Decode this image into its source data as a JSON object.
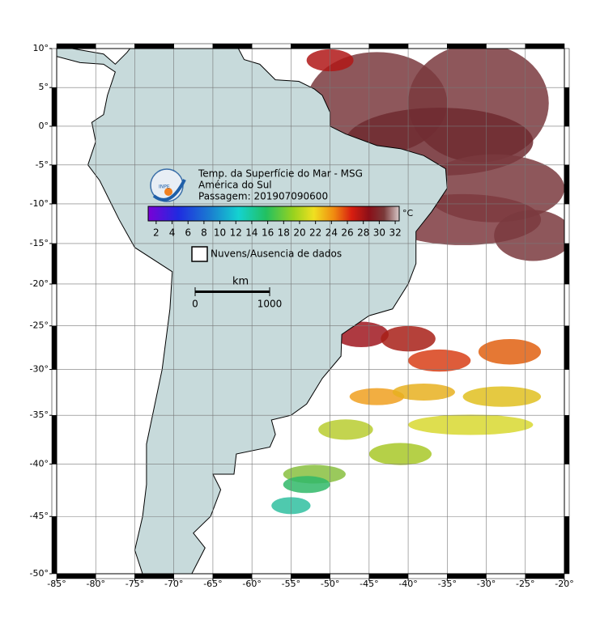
{
  "map": {
    "lonlim": [
      -85,
      -20
    ],
    "latlim": [
      -50,
      10
    ],
    "lonticks": [
      {
        "value": -85,
        "label": "-85°"
      },
      {
        "value": -80,
        "label": "-80°"
      },
      {
        "value": -75,
        "label": "-75°"
      },
      {
        "value": -70,
        "label": "-70°"
      },
      {
        "value": -65,
        "label": "-65°"
      },
      {
        "value": -60,
        "label": "-60°"
      },
      {
        "value": -55,
        "label": "-55°"
      },
      {
        "value": -50,
        "label": "-50°"
      },
      {
        "value": -45,
        "label": "-45°"
      },
      {
        "value": -40,
        "label": "-40°"
      },
      {
        "value": -35,
        "label": "-35°"
      },
      {
        "value": -30,
        "label": "-30°"
      },
      {
        "value": -25,
        "label": "-25°"
      },
      {
        "value": -20,
        "label": "-20°"
      }
    ],
    "latticks": [
      {
        "value": 10,
        "label": "10°"
      },
      {
        "value": 5,
        "label": "5°"
      },
      {
        "value": 0,
        "label": "0°"
      },
      {
        "value": -5,
        "label": "-5°"
      },
      {
        "value": -10,
        "label": "-10°"
      },
      {
        "value": -15,
        "label": "-15°"
      },
      {
        "value": -20,
        "label": "-20°"
      },
      {
        "value": -25,
        "label": "-25°"
      },
      {
        "value": -30,
        "label": "-30°"
      },
      {
        "value": -35,
        "label": "-35°"
      },
      {
        "value": -40,
        "label": "-40°"
      },
      {
        "value": -45,
        "label": "-45°"
      },
      {
        "value": -50,
        "label": "-50°"
      }
    ],
    "grid": true,
    "legend": {
      "title": "Temp. da Superfície do Mar - MSG",
      "region": "América do Sul",
      "pass": "Passagem: 201907090600",
      "logo": "INPE",
      "unit": "°C",
      "clim": [
        1,
        32.5
      ],
      "colorbar_ticks": [
        2,
        4,
        6,
        8,
        10,
        12,
        14,
        16,
        18,
        20,
        22,
        24,
        26,
        28,
        30,
        32
      ],
      "clouds": "Nuvens/Ausencia de dados"
    },
    "scale": {
      "unit": "km",
      "ticks": [
        0,
        1000
      ]
    }
  }
}
